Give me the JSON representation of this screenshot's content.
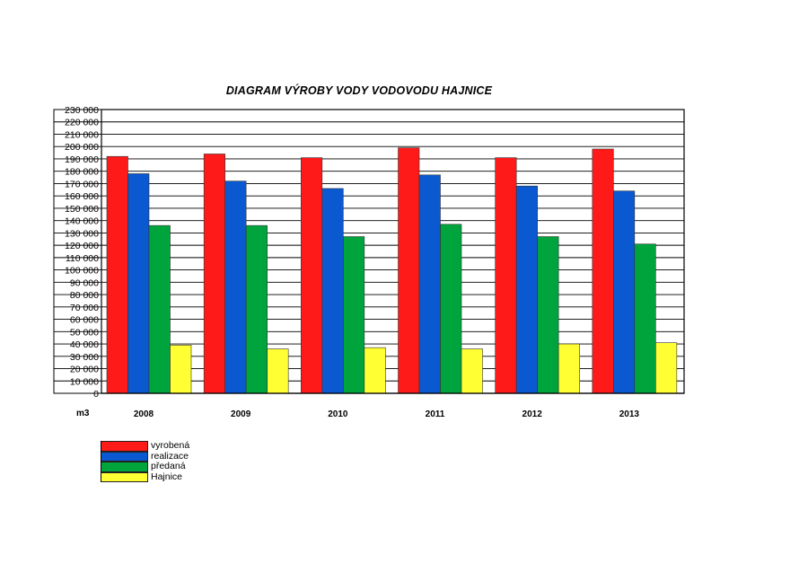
{
  "chart_data": {
    "type": "bar",
    "title": "DIAGRAM  VÝROBY  VODY  VODOVODU HAJNICE",
    "unit_label": "m3",
    "categories": [
      "2008",
      "2009",
      "2010",
      "2011",
      "2012",
      "2013"
    ],
    "ylim": [
      0,
      230000
    ],
    "ytick_step": 10000,
    "yticks": [
      "0",
      "10 000",
      "20 000",
      "30 000",
      "40 000",
      "50 000",
      "60 000",
      "70 000",
      "80 000",
      "90 000",
      "100 000",
      "110 000",
      "120 000",
      "130 000",
      "140 000",
      "150 000",
      "160 000",
      "170 000",
      "180 000",
      "190 000",
      "200 000",
      "210 000",
      "220 000",
      "230 000"
    ],
    "grid": true,
    "legend_position": "bottom-left",
    "series": [
      {
        "name": "vyrobená",
        "color": "#ff1a1a",
        "values": [
          192000,
          194000,
          191000,
          199000,
          191000,
          198000
        ]
      },
      {
        "name": "realizace",
        "color": "#0a59d1",
        "values": [
          178000,
          172000,
          166000,
          177000,
          168000,
          164000
        ]
      },
      {
        "name": "předaná",
        "color": "#00a43c",
        "values": [
          136000,
          136000,
          127000,
          137000,
          127000,
          121000
        ]
      },
      {
        "name": "Hajnice",
        "color": "#ffff33",
        "values": [
          39000,
          36000,
          37000,
          36000,
          40000,
          41000
        ]
      }
    ]
  }
}
